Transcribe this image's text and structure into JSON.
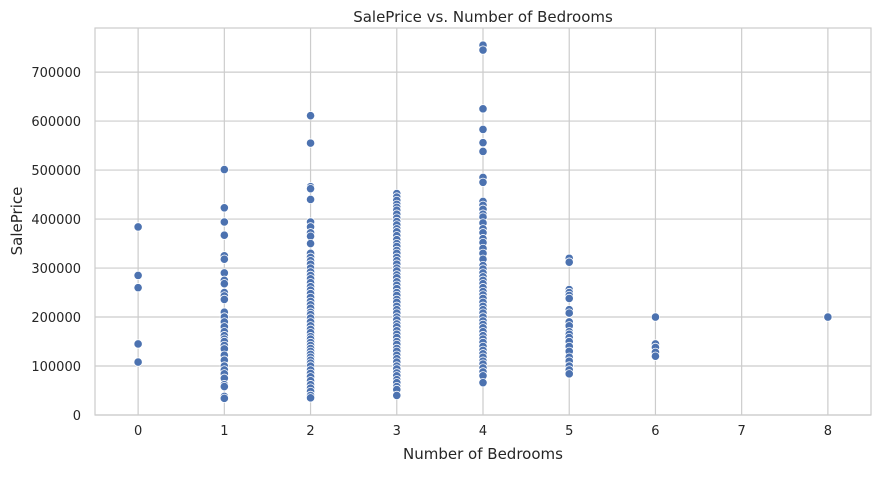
{
  "chart_data": {
    "type": "scatter",
    "title": "SalePrice vs. Number of Bedrooms",
    "xlabel": "Number of Bedrooms",
    "ylabel": "SalePrice",
    "xlim": [
      -0.5,
      8.5
    ],
    "ylim": [
      0,
      790000
    ],
    "x_ticks": [
      0,
      1,
      2,
      3,
      4,
      5,
      6,
      7,
      8
    ],
    "y_ticks": [
      0,
      100000,
      200000,
      300000,
      400000,
      500000,
      600000,
      700000
    ],
    "grid": true,
    "marker_color": "#4c72b0",
    "points": [
      [
        0,
        384000
      ],
      [
        0,
        285000
      ],
      [
        0,
        260000
      ],
      [
        0,
        145000
      ],
      [
        0,
        108000
      ],
      [
        1,
        501000
      ],
      [
        1,
        423000
      ],
      [
        1,
        394000
      ],
      [
        1,
        367000
      ],
      [
        1,
        325000
      ],
      [
        1,
        318000
      ],
      [
        1,
        290000
      ],
      [
        1,
        275000
      ],
      [
        1,
        268000
      ],
      [
        1,
        250000
      ],
      [
        1,
        243000
      ],
      [
        1,
        236000
      ],
      [
        1,
        210000
      ],
      [
        1,
        200000
      ],
      [
        1,
        190000
      ],
      [
        1,
        180000
      ],
      [
        1,
        170000
      ],
      [
        1,
        162000
      ],
      [
        1,
        155000
      ],
      [
        1,
        150000
      ],
      [
        1,
        142000
      ],
      [
        1,
        135000
      ],
      [
        1,
        122000
      ],
      [
        1,
        112000
      ],
      [
        1,
        100000
      ],
      [
        1,
        92000
      ],
      [
        1,
        84000
      ],
      [
        1,
        75000
      ],
      [
        1,
        62000
      ],
      [
        1,
        58000
      ],
      [
        1,
        38000
      ],
      [
        1,
        34000
      ],
      [
        2,
        611000
      ],
      [
        2,
        555000
      ],
      [
        2,
        466000
      ],
      [
        2,
        462000
      ],
      [
        2,
        440000
      ],
      [
        2,
        394000
      ],
      [
        2,
        384000
      ],
      [
        2,
        372000
      ],
      [
        2,
        365000
      ],
      [
        2,
        350000
      ],
      [
        2,
        330000
      ],
      [
        2,
        322000
      ],
      [
        2,
        315000
      ],
      [
        2,
        308000
      ],
      [
        2,
        300000
      ],
      [
        2,
        292000
      ],
      [
        2,
        285000
      ],
      [
        2,
        278000
      ],
      [
        2,
        270000
      ],
      [
        2,
        262000
      ],
      [
        2,
        255000
      ],
      [
        2,
        248000
      ],
      [
        2,
        240000
      ],
      [
        2,
        232000
      ],
      [
        2,
        225000
      ],
      [
        2,
        218000
      ],
      [
        2,
        210000
      ],
      [
        2,
        205000
      ],
      [
        2,
        198000
      ],
      [
        2,
        190000
      ],
      [
        2,
        182000
      ],
      [
        2,
        175000
      ],
      [
        2,
        168000
      ],
      [
        2,
        160000
      ],
      [
        2,
        155000
      ],
      [
        2,
        148000
      ],
      [
        2,
        142000
      ],
      [
        2,
        136000
      ],
      [
        2,
        130000
      ],
      [
        2,
        124000
      ],
      [
        2,
        118000
      ],
      [
        2,
        112000
      ],
      [
        2,
        106000
      ],
      [
        2,
        100000
      ],
      [
        2,
        92000
      ],
      [
        2,
        85000
      ],
      [
        2,
        78000
      ],
      [
        2,
        70000
      ],
      [
        2,
        62000
      ],
      [
        2,
        55000
      ],
      [
        2,
        48000
      ],
      [
        2,
        40000
      ],
      [
        2,
        35000
      ],
      [
        3,
        452000
      ],
      [
        3,
        445000
      ],
      [
        3,
        438000
      ],
      [
        3,
        430000
      ],
      [
        3,
        424000
      ],
      [
        3,
        418000
      ],
      [
        3,
        410000
      ],
      [
        3,
        402000
      ],
      [
        3,
        395000
      ],
      [
        3,
        388000
      ],
      [
        3,
        380000
      ],
      [
        3,
        374000
      ],
      [
        3,
        366000
      ],
      [
        3,
        358000
      ],
      [
        3,
        350000
      ],
      [
        3,
        344000
      ],
      [
        3,
        336000
      ],
      [
        3,
        330000
      ],
      [
        3,
        322000
      ],
      [
        3,
        315000
      ],
      [
        3,
        308000
      ],
      [
        3,
        300000
      ],
      [
        3,
        294000
      ],
      [
        3,
        286000
      ],
      [
        3,
        280000
      ],
      [
        3,
        272000
      ],
      [
        3,
        265000
      ],
      [
        3,
        258000
      ],
      [
        3,
        250000
      ],
      [
        3,
        244000
      ],
      [
        3,
        236000
      ],
      [
        3,
        230000
      ],
      [
        3,
        222000
      ],
      [
        3,
        215000
      ],
      [
        3,
        208000
      ],
      [
        3,
        200000
      ],
      [
        3,
        194000
      ],
      [
        3,
        186000
      ],
      [
        3,
        180000
      ],
      [
        3,
        172000
      ],
      [
        3,
        165000
      ],
      [
        3,
        158000
      ],
      [
        3,
        150000
      ],
      [
        3,
        144000
      ],
      [
        3,
        136000
      ],
      [
        3,
        130000
      ],
      [
        3,
        122000
      ],
      [
        3,
        115000
      ],
      [
        3,
        108000
      ],
      [
        3,
        100000
      ],
      [
        3,
        94000
      ],
      [
        3,
        86000
      ],
      [
        3,
        80000
      ],
      [
        3,
        72000
      ],
      [
        3,
        66000
      ],
      [
        3,
        58000
      ],
      [
        3,
        52000
      ],
      [
        3,
        40000
      ],
      [
        4,
        755000
      ],
      [
        4,
        745000
      ],
      [
        4,
        625000
      ],
      [
        4,
        583000
      ],
      [
        4,
        556000
      ],
      [
        4,
        538000
      ],
      [
        4,
        485000
      ],
      [
        4,
        475000
      ],
      [
        4,
        436000
      ],
      [
        4,
        428000
      ],
      [
        4,
        420000
      ],
      [
        4,
        410000
      ],
      [
        4,
        404000
      ],
      [
        4,
        392000
      ],
      [
        4,
        380000
      ],
      [
        4,
        372000
      ],
      [
        4,
        360000
      ],
      [
        4,
        352000
      ],
      [
        4,
        340000
      ],
      [
        4,
        330000
      ],
      [
        4,
        318000
      ],
      [
        4,
        305000
      ],
      [
        4,
        298000
      ],
      [
        4,
        290000
      ],
      [
        4,
        282000
      ],
      [
        4,
        275000
      ],
      [
        4,
        268000
      ],
      [
        4,
        260000
      ],
      [
        4,
        252000
      ],
      [
        4,
        245000
      ],
      [
        4,
        238000
      ],
      [
        4,
        230000
      ],
      [
        4,
        222000
      ],
      [
        4,
        215000
      ],
      [
        4,
        208000
      ],
      [
        4,
        200000
      ],
      [
        4,
        192000
      ],
      [
        4,
        185000
      ],
      [
        4,
        178000
      ],
      [
        4,
        170000
      ],
      [
        4,
        162000
      ],
      [
        4,
        155000
      ],
      [
        4,
        148000
      ],
      [
        4,
        140000
      ],
      [
        4,
        132000
      ],
      [
        4,
        125000
      ],
      [
        4,
        118000
      ],
      [
        4,
        110000
      ],
      [
        4,
        104000
      ],
      [
        4,
        96000
      ],
      [
        4,
        88000
      ],
      [
        4,
        80000
      ],
      [
        4,
        66000
      ],
      [
        5,
        320000
      ],
      [
        5,
        312000
      ],
      [
        5,
        256000
      ],
      [
        5,
        250000
      ],
      [
        5,
        244000
      ],
      [
        5,
        238000
      ],
      [
        5,
        215000
      ],
      [
        5,
        208000
      ],
      [
        5,
        190000
      ],
      [
        5,
        182000
      ],
      [
        5,
        170000
      ],
      [
        5,
        165000
      ],
      [
        5,
        158000
      ],
      [
        5,
        150000
      ],
      [
        5,
        140000
      ],
      [
        5,
        130000
      ],
      [
        5,
        118000
      ],
      [
        5,
        110000
      ],
      [
        5,
        100000
      ],
      [
        5,
        92000
      ],
      [
        5,
        84000
      ],
      [
        6,
        200000
      ],
      [
        6,
        145000
      ],
      [
        6,
        138000
      ],
      [
        6,
        128000
      ],
      [
        6,
        120000
      ],
      [
        8,
        200000
      ]
    ]
  }
}
